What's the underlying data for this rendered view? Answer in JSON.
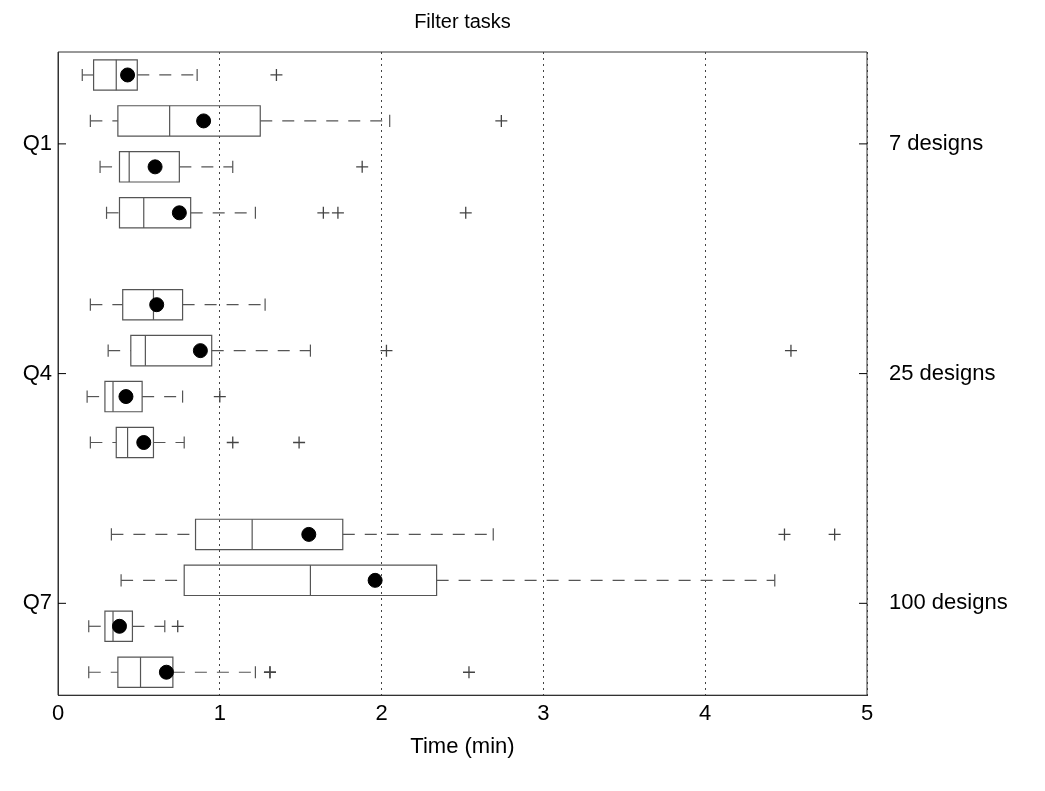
{
  "chart_data": {
    "type": "box",
    "orientation": "horizontal",
    "title": "Filter tasks",
    "xlabel": "Time (min)",
    "categories": [
      null,
      null,
      null,
      null,
      null,
      null,
      null,
      null,
      null,
      null,
      null,
      null,
      null,
      null
    ],
    "boxes": [
      {
        "low": 0.15,
        "q1": 0.22,
        "median": 0.36,
        "q3": 0.49,
        "high": 0.86,
        "mean": 0.43,
        "outliers": [
          1.35
        ]
      },
      {
        "low": 0.2,
        "q1": 0.37,
        "median": 0.69,
        "q3": 1.25,
        "high": 2.05,
        "mean": 0.9,
        "outliers": [
          2.74
        ]
      },
      {
        "low": 0.26,
        "q1": 0.38,
        "median": 0.44,
        "q3": 0.75,
        "high": 1.08,
        "mean": 0.6,
        "outliers": [
          1.88
        ]
      },
      {
        "low": 0.3,
        "q1": 0.38,
        "median": 0.53,
        "q3": 0.82,
        "high": 1.22,
        "mean": 0.75,
        "outliers": [
          1.64,
          1.73,
          2.52
        ]
      },
      null,
      {
        "low": 0.2,
        "q1": 0.4,
        "median": 0.59,
        "q3": 0.77,
        "high": 1.28,
        "mean": 0.61
      },
      {
        "low": 0.31,
        "q1": 0.45,
        "median": 0.54,
        "q3": 0.95,
        "high": 1.56,
        "mean": 0.88,
        "outliers": [
          2.03,
          4.53
        ]
      },
      {
        "low": 0.18,
        "q1": 0.29,
        "median": 0.34,
        "q3": 0.52,
        "high": 0.77,
        "mean": 0.42,
        "outliers": [
          1.0
        ]
      },
      {
        "low": 0.2,
        "q1": 0.36,
        "median": 0.43,
        "q3": 0.59,
        "high": 0.78,
        "mean": 0.53,
        "outliers": [
          1.08,
          1.49
        ]
      },
      null,
      {
        "low": 0.33,
        "q1": 0.85,
        "median": 1.2,
        "q3": 1.76,
        "high": 2.69,
        "mean": 1.55,
        "outliers": [
          4.49,
          4.8
        ]
      },
      {
        "low": 0.39,
        "q1": 0.78,
        "median": 1.56,
        "q3": 2.34,
        "high": 4.43,
        "mean": 1.96
      },
      {
        "low": 0.19,
        "q1": 0.29,
        "median": 0.34,
        "q3": 0.46,
        "high": 0.66,
        "mean": 0.38,
        "outliers": [
          0.74
        ]
      },
      {
        "low": 0.19,
        "q1": 0.37,
        "median": 0.51,
        "q3": 0.71,
        "high": 1.22,
        "mean": 0.67,
        "outliers": [
          1.31,
          1.31,
          2.54
        ]
      }
    ],
    "annotations": [
      "Q1",
      "Q4",
      "Q7",
      "7 designs",
      "25 designs",
      "100 designs"
    ],
    "xlim": [
      0,
      5
    ],
    "xticks": [
      0,
      1,
      2,
      3,
      4,
      5
    ],
    "grid": "x"
  }
}
